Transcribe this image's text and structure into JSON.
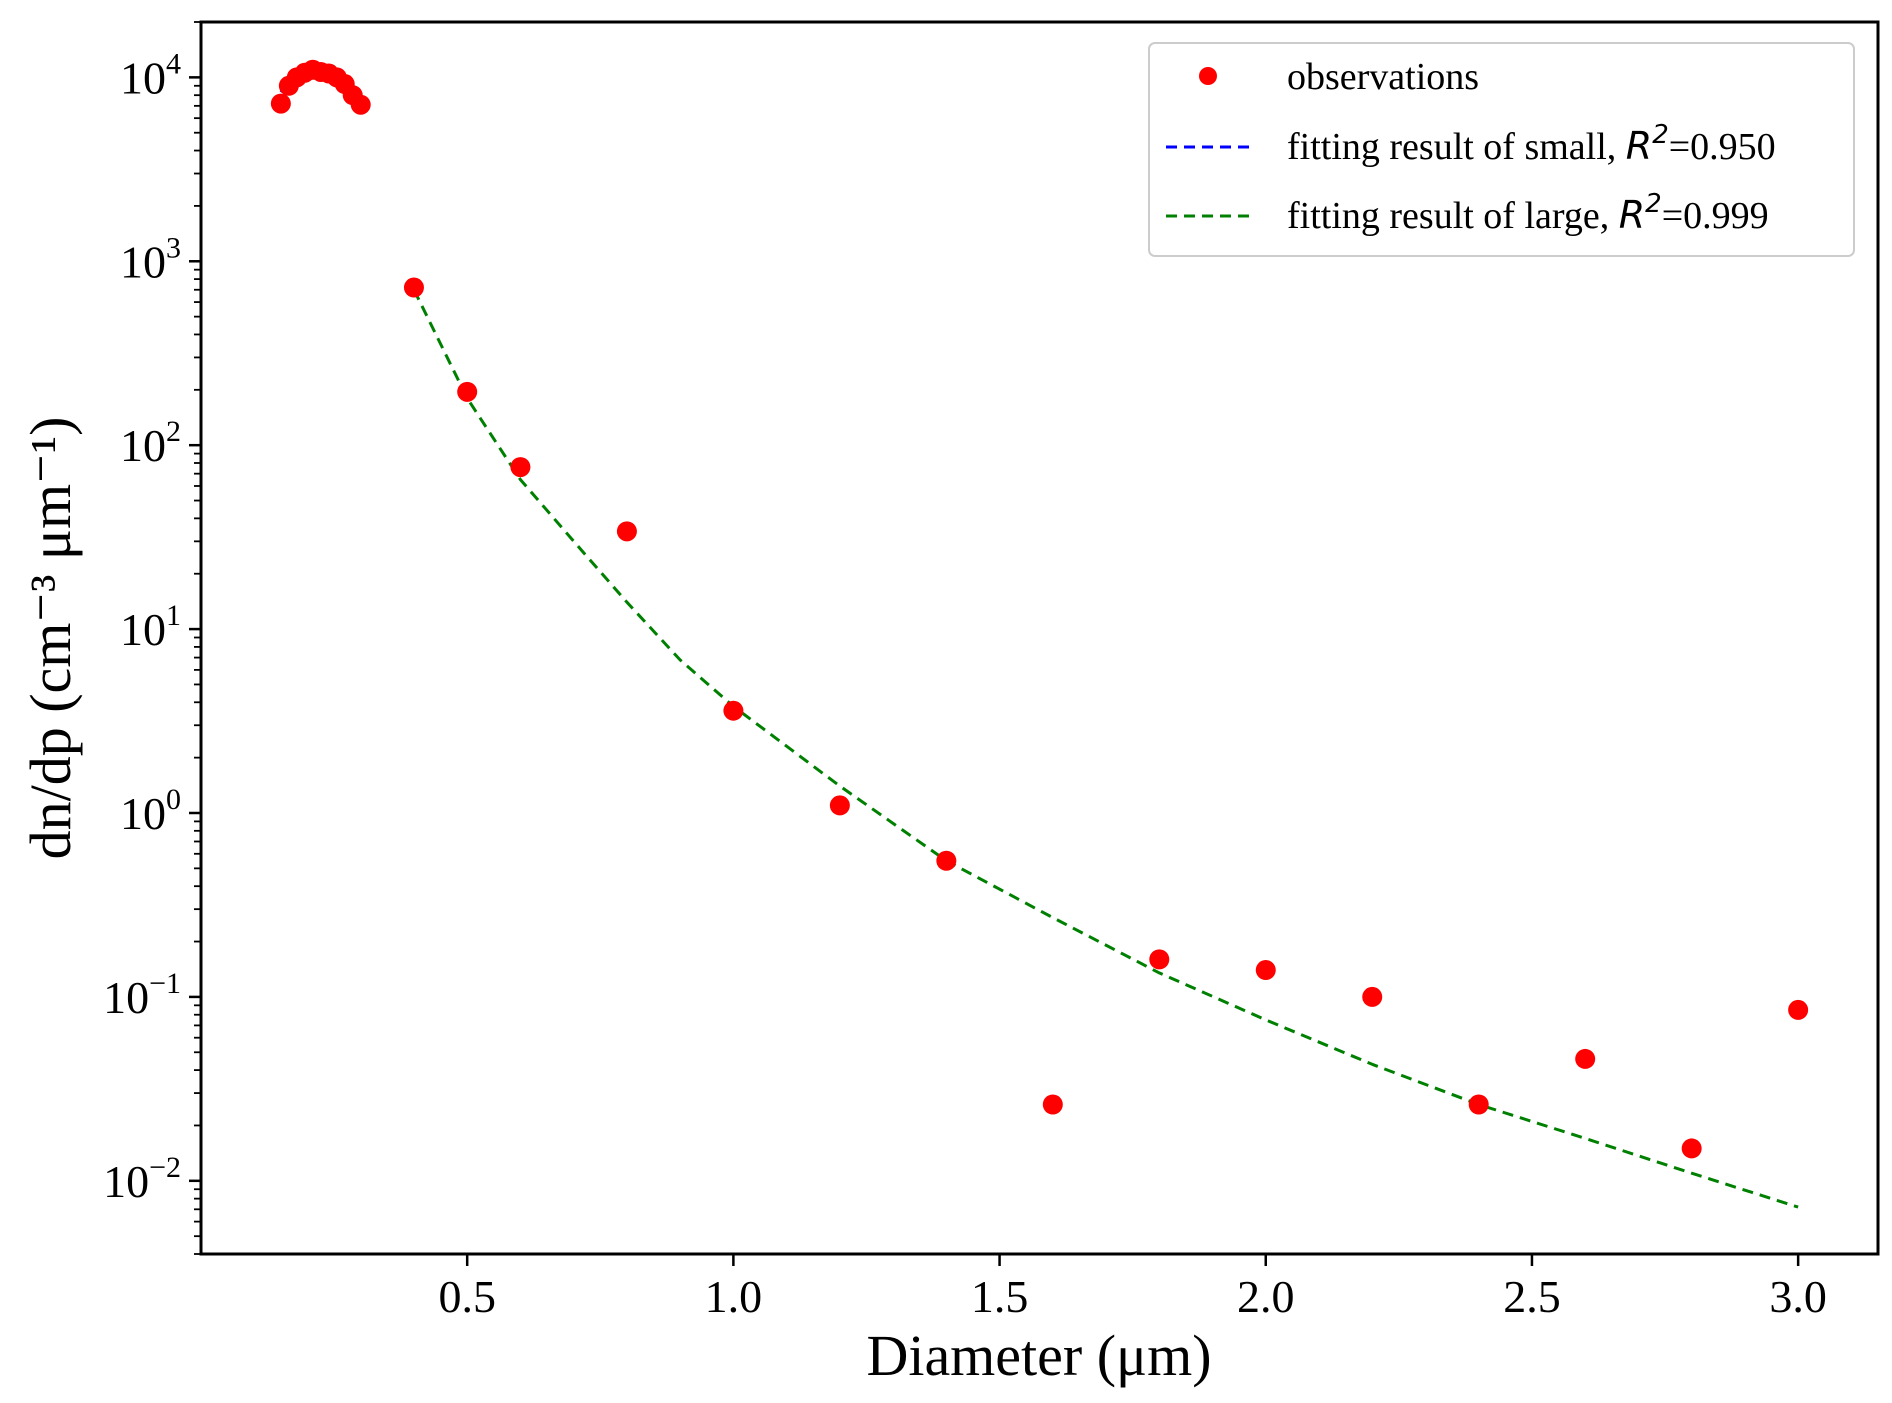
{
  "chart_data": {
    "type": "scatter",
    "xlabel": "Diameter (μm)",
    "ylabel": "dn/dp (cm⁻³ μm⁻¹)",
    "xlim": [
      0.0,
      3.15
    ],
    "ylim": [
      0.004,
      20000
    ],
    "yscale": "log",
    "grid": false,
    "legend_position": "top-right",
    "x_ticks": [
      0.5,
      1.0,
      1.5,
      2.0,
      2.5,
      3.0
    ],
    "x_tick_labels": [
      "0.5",
      "1.0",
      "1.5",
      "2.0",
      "2.5",
      "3.0"
    ],
    "y_ticks": [
      0.01,
      0.1,
      1,
      10,
      100,
      1000,
      10000
    ],
    "y_tick_labels": [
      {
        "base": "10",
        "exp": "−2"
      },
      {
        "base": "10",
        "exp": "−1"
      },
      {
        "base": "10",
        "exp": "0"
      },
      {
        "base": "10",
        "exp": "1"
      },
      {
        "base": "10",
        "exp": "2"
      },
      {
        "base": "10",
        "exp": "3"
      },
      {
        "base": "10",
        "exp": "4"
      }
    ],
    "series": [
      {
        "name": "observations",
        "kind": "scatter",
        "color": "#ff0000",
        "x": [
          0.15,
          0.165,
          0.18,
          0.195,
          0.21,
          0.225,
          0.24,
          0.255,
          0.27,
          0.285,
          0.3,
          0.4,
          0.5,
          0.6,
          0.8,
          1.0,
          1.2,
          1.4,
          1.6,
          1.8,
          2.0,
          2.2,
          2.4,
          2.6,
          2.8,
          3.0
        ],
        "y": [
          7200,
          9000,
          10000,
          10600,
          11000,
          10700,
          10500,
          10000,
          9200,
          8000,
          7100,
          720,
          195,
          76,
          34,
          3.6,
          1.1,
          0.55,
          0.026,
          0.16,
          0.14,
          0.1,
          0.026,
          0.046,
          0.015,
          0.085
        ]
      },
      {
        "name": "fitting result of small",
        "r2_label": "R",
        "r2_exp": "2",
        "r2_value": "=0.950",
        "kind": "line",
        "style": "dashed",
        "color": "#0000ff",
        "x": [
          0.15,
          0.165,
          0.18,
          0.195,
          0.21,
          0.225,
          0.24,
          0.255,
          0.27,
          0.285,
          0.3
        ],
        "y": [
          8300,
          9600,
          10500,
          10900,
          11000,
          10800,
          10300,
          9600,
          8700,
          7800,
          6900
        ]
      },
      {
        "name": "fitting result of large",
        "r2_label": "R",
        "r2_exp": "2",
        "r2_value": "=0.999",
        "kind": "line",
        "style": "dashed",
        "color": "#008000",
        "x": [
          0.4,
          0.5,
          0.6,
          0.7,
          0.8,
          0.9,
          1.0,
          1.2,
          1.4,
          1.6,
          1.8,
          2.0,
          2.2,
          2.4,
          2.6,
          2.8,
          3.0
        ],
        "y": [
          700,
          180,
          65,
          30,
          14,
          6.8,
          3.8,
          1.4,
          0.55,
          0.27,
          0.135,
          0.075,
          0.043,
          0.026,
          0.017,
          0.011,
          0.0072
        ]
      }
    ]
  }
}
